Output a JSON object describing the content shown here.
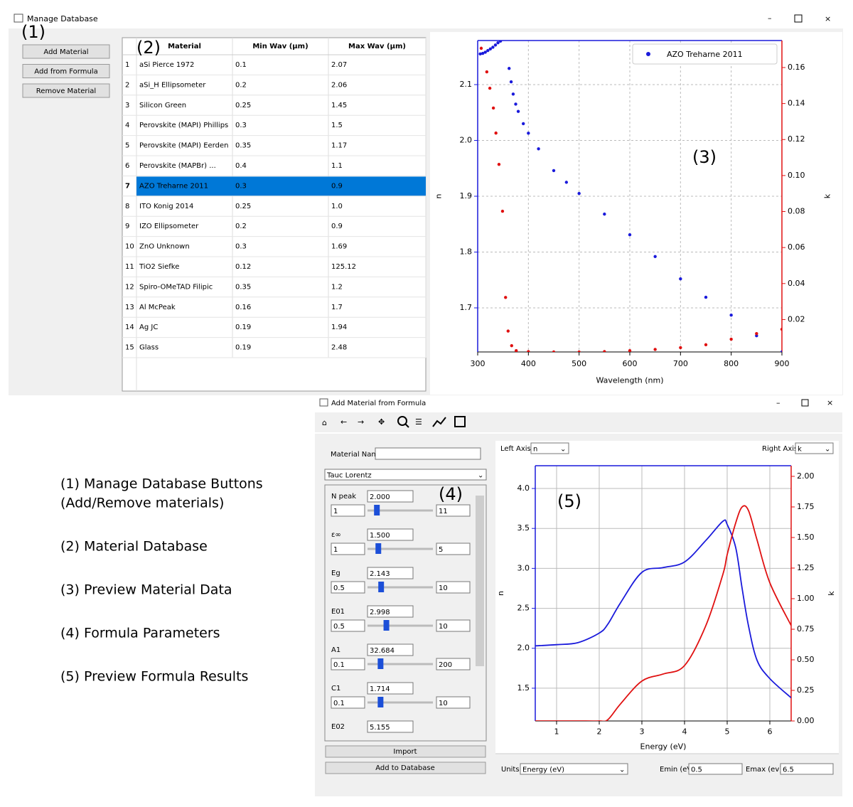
{
  "manage_window": {
    "title": "Manage Database",
    "buttons": [
      "Add Material",
      "Add from Formula",
      "Remove Material"
    ]
  },
  "callouts": [
    "(1)",
    "(2)",
    "(3)",
    "(4)",
    "(5)"
  ],
  "table": {
    "headers": [
      "Material",
      "Min Wav (µm)",
      "Max Wav (µm)"
    ],
    "selected_row": 6,
    "rows": [
      [
        "1",
        "aSi Pierce 1972",
        "0.1",
        "2.07"
      ],
      [
        "2",
        "aSi_H Ellipsometer",
        "0.2",
        "2.06"
      ],
      [
        "3",
        "Silicon Green",
        "0.25",
        "1.45"
      ],
      [
        "4",
        "Perovskite (MAPI) Phillips",
        "0.3",
        "1.5"
      ],
      [
        "5",
        "Perovskite (MAPI) Eerden",
        "0.35",
        "1.17"
      ],
      [
        "6",
        "Perovskite (MAPBr) ...",
        "0.4",
        "1.1"
      ],
      [
        "7",
        "AZO Treharne 2011",
        "0.3",
        "0.9"
      ],
      [
        "8",
        "ITO Konig 2014",
        "0.25",
        "1.0"
      ],
      [
        "9",
        "IZO Ellipsometer",
        "0.2",
        "0.9"
      ],
      [
        "10",
        "ZnO Unknown",
        "0.3",
        "1.69"
      ],
      [
        "11",
        "TiO2 Siefke",
        "0.12",
        "125.12"
      ],
      [
        "12",
        "Spiro-OMeTAD Filipic",
        "0.35",
        "1.2"
      ],
      [
        "13",
        "Al McPeak",
        "0.16",
        "1.7"
      ],
      [
        "14",
        "Ag JC",
        "0.19",
        "1.94"
      ],
      [
        "15",
        "Glass",
        "0.19",
        "2.48"
      ]
    ]
  },
  "notes": [
    "(1) Manage Database Buttons",
    "(Add/Remove materials)",
    "(2) Material Database",
    "(3) Preview Material Data",
    "(4) Formula Parameters",
    "(5) Preview Formula Results"
  ],
  "formula_window": {
    "title": "Add Material from Formula",
    "material_name_label": "Material Name:",
    "model": "Tauc Lorentz",
    "params": [
      {
        "name": "N peak",
        "value": "2.000",
        "min": "1",
        "max": "11"
      },
      {
        "name": "ε∞",
        "value": "1.500",
        "min": "1",
        "max": "5"
      },
      {
        "name": "Eg",
        "value": "2.143",
        "min": "0.5",
        "max": "10"
      },
      {
        "name": "E01",
        "value": "2.998",
        "min": "0.5",
        "max": "10"
      },
      {
        "name": "A1",
        "value": "32.684",
        "min": "0.1",
        "max": "200"
      },
      {
        "name": "C1",
        "value": "1.714",
        "min": "0.1",
        "max": "10"
      },
      {
        "name": "E02",
        "value": "5.155"
      }
    ],
    "buttons": [
      "Import",
      "Add to Database"
    ],
    "left_axis_label": "Left Axis:",
    "left_axis": "n",
    "right_axis_label": "Right Axis:",
    "right_axis": "k",
    "units_label": "Units:",
    "units": "Energy (eV)",
    "emin_label": "Emin (eV)",
    "emin": "0.5",
    "emax_label": "Emax (ev):",
    "emax": "6.5"
  },
  "chart_data": [
    {
      "type": "scatter",
      "x_label": "Wavelength (nm)",
      "y_label": "n",
      "y2_label": "k",
      "xlim": [
        300,
        900
      ],
      "xticks": [
        300,
        400,
        500,
        600,
        700,
        800,
        900
      ],
      "ylim": [
        1.621,
        2.179
      ],
      "yticks": [
        1.7,
        1.8,
        1.9,
        {
          "value": 2,
          "label": "2.0"
        },
        2.1
      ],
      "y2lim": [
        0.002,
        0.175
      ],
      "y2ticks": [
        0.02,
        0.04,
        0.06,
        0.08,
        {
          "value": 0.1,
          "label": "0.10"
        },
        0.12,
        0.14,
        0.16
      ],
      "grid": true,
      "legend": "upper right",
      "series": [
        {
          "name": "AZO Treharne 2011",
          "color": "#1a1adb",
          "x": [
            305,
            310,
            315,
            320,
            325,
            330,
            335,
            340,
            345,
            362,
            366,
            370,
            375,
            380,
            390,
            400,
            420,
            450,
            475,
            500,
            550,
            600,
            650,
            700,
            750,
            800,
            850,
            900
          ],
          "values": [
            2.155,
            2.156,
            2.158,
            2.161,
            2.164,
            2.167,
            2.171,
            2.175,
            2.178,
            2.129,
            2.105,
            2.083,
            2.065,
            2.052,
            2.03,
            2.013,
            1.985,
            1.946,
            1.925,
            1.905,
            1.868,
            1.831,
            1.792,
            1.752,
            1.719,
            1.687,
            1.65,
            1.621
          ]
        },
        {
          "color": "#e01010",
          "axis": "y2",
          "x": [
            307,
            318,
            324,
            331,
            336,
            342,
            349,
            355,
            360,
            367,
            376,
            400,
            450,
            500,
            550,
            600,
            650,
            700,
            750,
            800,
            850,
            900
          ],
          "values": [
            0.1707,
            0.1576,
            0.1485,
            0.1375,
            0.1236,
            0.1062,
            0.0802,
            0.0323,
            0.0136,
            0.0055,
            0.0027,
            0.0022,
            0.002,
            0.002,
            0.0022,
            0.0027,
            0.0034,
            0.0044,
            0.006,
            0.0091,
            0.0122,
            0.0146
          ]
        }
      ]
    },
    {
      "type": "line",
      "x_label": "Energy (eV)",
      "y_label": "n",
      "y2_label": "k",
      "xlim": [
        0.5,
        6.5
      ],
      "xticks": [
        1,
        2,
        3,
        4,
        5,
        6
      ],
      "ylim": [
        1.09,
        4.285
      ],
      "yticks": [
        1.5,
        {
          "value": 2,
          "label": "2.0"
        },
        2.5,
        {
          "value": 3,
          "label": "3.0"
        },
        3.5,
        {
          "value": 4,
          "label": "4.0"
        }
      ],
      "y2lim": [
        0,
        2.087
      ],
      "y2ticks": [
        {
          "value": 0,
          "label": "0.00"
        },
        0.25,
        {
          "value": 0.5,
          "label": "0.50"
        },
        0.75,
        {
          "value": 1,
          "label": "1.00"
        },
        1.25,
        {
          "value": 1.5,
          "label": "1.50"
        },
        1.75,
        {
          "value": 2,
          "label": "2.00"
        }
      ],
      "grid": true,
      "x": [
        0.5,
        1,
        1.5,
        2,
        2.2,
        2.5,
        3,
        3.5,
        4,
        4.5,
        4.9,
        5,
        5.2,
        5.35,
        5.5,
        5.7,
        6,
        6.5
      ],
      "series": [
        {
          "color": "#1a1adb",
          "values": [
            2.03,
            2.045,
            2.07,
            2.19,
            2.3,
            2.57,
            2.95,
            3.01,
            3.08,
            3.35,
            3.59,
            3.55,
            3.26,
            2.75,
            2.28,
            1.85,
            1.62,
            1.38
          ]
        },
        {
          "color": "#e01010",
          "axis": "y2",
          "values": [
            0,
            0,
            0,
            0,
            0.01,
            0.14,
            0.326,
            0.384,
            0.453,
            0.78,
            1.2,
            1.36,
            1.62,
            1.75,
            1.72,
            1.48,
            1.13,
            0.78
          ]
        }
      ]
    }
  ]
}
